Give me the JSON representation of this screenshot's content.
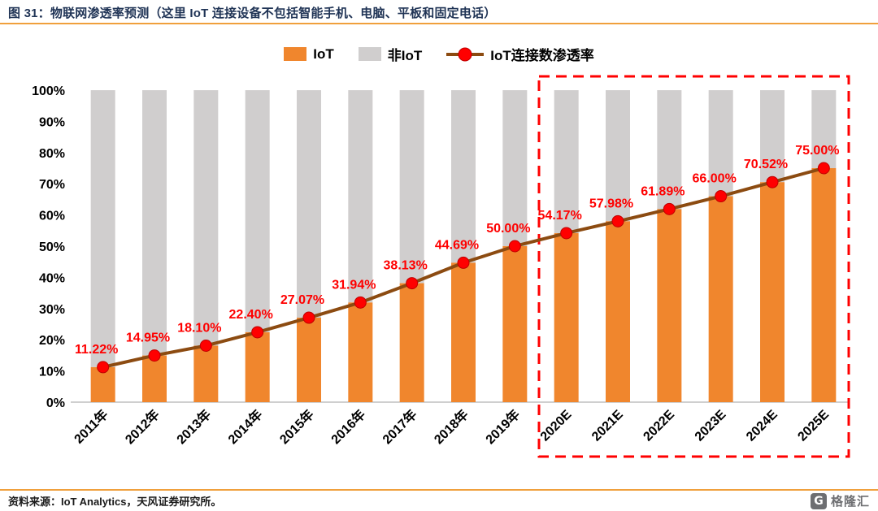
{
  "header": {
    "title": "图 31：物联网渗透率预测（这里 IoT 连接设备不包括智能手机、电脑、平板和固定电话）"
  },
  "legend": [
    {
      "label": "IoT",
      "type": "bar",
      "color": "#F0862D"
    },
    {
      "label": "非IoT",
      "type": "bar",
      "color": "#D0CECE"
    },
    {
      "label": "IoT连接数渗透率",
      "type": "line",
      "color": "#8C4B11",
      "marker_color": "#FF0000"
    }
  ],
  "chart_data": {
    "type": "bar",
    "subtype": "stacked-100-percent-with-line",
    "title": "物联网渗透率预测",
    "categories": [
      "2011年",
      "2012年",
      "2013年",
      "2014年",
      "2015年",
      "2016年",
      "2017年",
      "2018年",
      "2019年",
      "2020E",
      "2021E",
      "2022E",
      "2023E",
      "2024E",
      "2025E"
    ],
    "series": [
      {
        "name": "IoT",
        "type": "bar",
        "color": "#F0862D",
        "values": [
          11.22,
          14.95,
          18.1,
          22.4,
          27.07,
          31.94,
          38.13,
          44.69,
          50.0,
          54.17,
          57.98,
          61.89,
          66.0,
          70.52,
          75.0
        ]
      },
      {
        "name": "非IoT",
        "type": "bar",
        "color": "#D0CECE",
        "values": [
          88.78,
          85.05,
          81.9,
          77.6,
          72.93,
          68.06,
          61.87,
          55.31,
          50.0,
          45.83,
          42.02,
          38.11,
          34.0,
          29.48,
          25.0
        ]
      },
      {
        "name": "IoT连接数渗透率",
        "type": "line",
        "color": "#8C4B11",
        "marker_color": "#FF0000",
        "values": [
          11.22,
          14.95,
          18.1,
          22.4,
          27.07,
          31.94,
          38.13,
          44.69,
          50.0,
          54.17,
          57.98,
          61.89,
          66.0,
          70.52,
          75.0
        ]
      }
    ],
    "data_labels": [
      "11.22%",
      "14.95%",
      "18.10%",
      "22.40%",
      "27.07%",
      "31.94%",
      "38.13%",
      "44.69%",
      "50.00%",
      "54.17%",
      "57.98%",
      "61.89%",
      "66.00%",
      "70.52%",
      "75.00%"
    ],
    "data_label_color": "#FF0000",
    "ylim": [
      0,
      100
    ],
    "yticks": [
      "100%",
      "90%",
      "80%",
      "70%",
      "60%",
      "50%",
      "40%",
      "30%",
      "20%",
      "10%",
      "0%"
    ],
    "grid": false,
    "legend_position": "top",
    "forecast_box": {
      "from": "2020E",
      "to": "2025E",
      "color": "#FF0000",
      "style": "dashed"
    }
  },
  "footer": {
    "source": "资料来源：IoT Analytics，天风证券研究所。"
  },
  "logo": {
    "initial": "G",
    "text": "格隆汇"
  }
}
